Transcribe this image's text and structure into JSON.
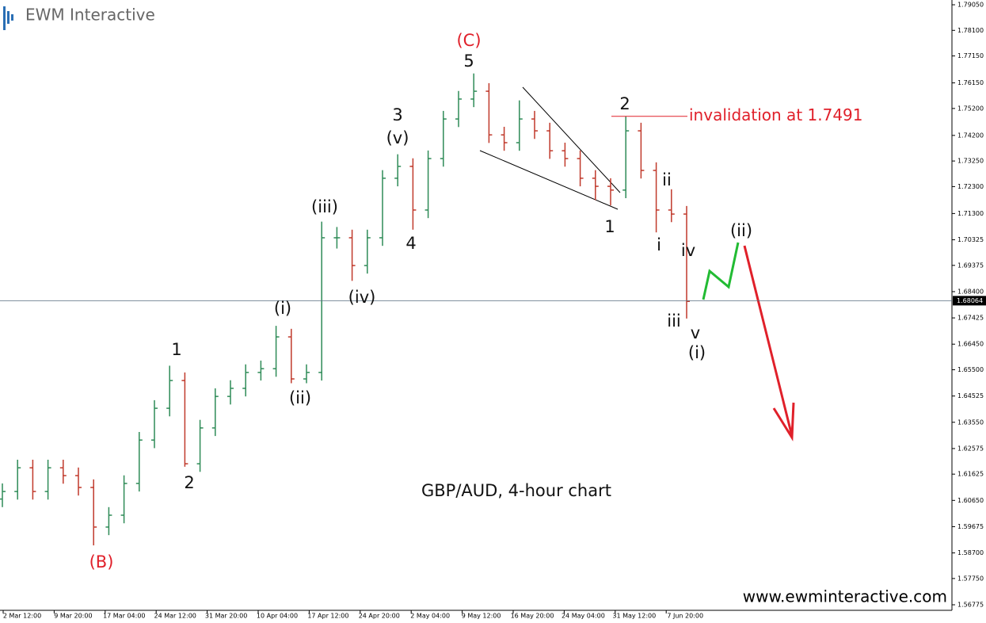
{
  "logo": "EWM Interactive",
  "footer": "www.ewminteractive.com",
  "chart_data": {
    "type": "ohlc",
    "title": "GBP/AUD, 4-hour chart",
    "up_color": "#2e8b57",
    "down_color": "#c0392b",
    "open": [
      1.607,
      1.6098,
      1.6186,
      1.6098,
      1.6186,
      1.6157,
      1.6113,
      1.5966,
      1.601,
      1.6128,
      1.6289,
      1.6407,
      1.651,
      1.6201,
      1.6334,
      1.6451,
      1.6481,
      1.654,
      1.6554,
      1.6672,
      1.6516,
      1.654,
      1.704,
      1.704,
      1.6937,
      1.704,
      1.7261,
      1.7305,
      1.7143,
      1.7334,
      1.7481,
      1.7555,
      1.7584,
      1.7422,
      1.7393,
      1.7481,
      1.7437,
      1.7363,
      1.7334,
      1.7261,
      1.7231,
      1.7217,
      1.7437,
      1.729,
      1.7143,
      1.7128
    ],
    "high": [
      1.6128,
      1.6216,
      1.6216,
      1.6216,
      1.6216,
      1.6187,
      1.6143,
      1.604,
      1.6158,
      1.6319,
      1.6437,
      1.6565,
      1.654,
      1.6364,
      1.6481,
      1.6511,
      1.657,
      1.6584,
      1.6713,
      1.6702,
      1.657,
      1.71,
      1.708,
      1.707,
      1.707,
      1.7291,
      1.735,
      1.7335,
      1.7364,
      1.7511,
      1.7585,
      1.765,
      1.7614,
      1.7452,
      1.755,
      1.7511,
      1.7467,
      1.7393,
      1.7364,
      1.7291,
      1.7261,
      1.7491,
      1.7467,
      1.732,
      1.722,
      1.7158
    ],
    "low": [
      1.604,
      1.6068,
      1.6068,
      1.6068,
      1.6127,
      1.6083,
      1.5898,
      1.5936,
      1.598,
      1.6098,
      1.6259,
      1.6377,
      1.619,
      1.6171,
      1.6304,
      1.6421,
      1.6451,
      1.651,
      1.6524,
      1.65,
      1.65,
      1.651,
      1.7,
      1.688,
      1.6907,
      1.701,
      1.7231,
      1.707,
      1.7113,
      1.7304,
      1.7451,
      1.7525,
      1.7392,
      1.7363,
      1.7363,
      1.7407,
      1.7333,
      1.7304,
      1.7231,
      1.718,
      1.716,
      1.7187,
      1.726,
      1.706,
      1.7098,
      1.674
    ],
    "close": [
      1.6098,
      1.6186,
      1.6098,
      1.6186,
      1.6157,
      1.6113,
      1.5966,
      1.601,
      1.6128,
      1.6289,
      1.6407,
      1.651,
      1.6201,
      1.6334,
      1.6451,
      1.6481,
      1.654,
      1.6554,
      1.6672,
      1.6516,
      1.654,
      1.704,
      1.704,
      1.6937,
      1.704,
      1.7261,
      1.7305,
      1.7143,
      1.7334,
      1.7481,
      1.7555,
      1.7584,
      1.7422,
      1.7393,
      1.7481,
      1.7437,
      1.7363,
      1.7334,
      1.7261,
      1.7231,
      1.7217,
      1.7437,
      1.729,
      1.7143,
      1.7128,
      1.6804
    ],
    "x_labels": [
      "2 Mar 12:00",
      "9 Mar 20:00",
      "17 Mar 04:00",
      "24 Mar 12:00",
      "31 Mar 20:00",
      "10 Apr 04:00",
      "17 Apr 12:00",
      "24 Apr 20:00",
      "2 May 04:00",
      "9 May 12:00",
      "16 May 20:00",
      "24 May 04:00",
      "31 May 12:00",
      "7 Jun 20:00"
    ],
    "ylim": [
      1.56569,
      1.79227
    ],
    "yticks": [
      {
        "value": 1.7905,
        "label": "1.79050"
      },
      {
        "value": 1.781,
        "label": "1.78100"
      },
      {
        "value": 1.7715,
        "label": "1.77150"
      },
      {
        "value": 1.7615,
        "label": "1.76150"
      },
      {
        "value": 1.752,
        "label": "1.75200"
      },
      {
        "value": 1.742,
        "label": "1.74200"
      },
      {
        "value": 1.7325,
        "label": "1.73250"
      },
      {
        "value": 1.723,
        "label": "1.72300"
      },
      {
        "value": 1.713,
        "label": "1.71300"
      },
      {
        "value": 1.70325,
        "label": "1.70325"
      },
      {
        "value": 1.69375,
        "label": "1.69375"
      },
      {
        "value": 1.684,
        "label": "1.68400"
      },
      {
        "value": 1.67425,
        "label": "1.67425"
      },
      {
        "value": 1.6645,
        "label": "1.66450"
      },
      {
        "value": 1.655,
        "label": "1.65500"
      },
      {
        "value": 1.64525,
        "label": "1.64525"
      },
      {
        "value": 1.6355,
        "label": "1.63550"
      },
      {
        "value": 1.62575,
        "label": "1.62575"
      },
      {
        "value": 1.61625,
        "label": "1.61625"
      },
      {
        "value": 1.6065,
        "label": "1.60650"
      },
      {
        "value": 1.59675,
        "label": "1.59675"
      },
      {
        "value": 1.587,
        "label": "1.58700"
      },
      {
        "value": 1.5775,
        "label": "1.57750"
      },
      {
        "value": 1.56775,
        "label": "1.56775"
      }
    ],
    "current_price": {
      "value": 1.68064,
      "label": "1.68064"
    },
    "invalidation": {
      "value": 1.7491,
      "label": "invalidation at 1.7491",
      "color": "#e0202a"
    },
    "annotations": [
      {
        "text": "(C)",
        "color": "#e0202a"
      },
      {
        "text": "5",
        "color": "#111111"
      },
      {
        "text": "3",
        "color": "#111111"
      },
      {
        "text": "(v)",
        "color": "#111111"
      },
      {
        "text": "(iii)",
        "color": "#111111"
      },
      {
        "text": "4",
        "color": "#111111"
      },
      {
        "text": "(iv)",
        "color": "#111111"
      },
      {
        "text": "(i)",
        "color": "#111111"
      },
      {
        "text": "(ii)",
        "color": "#111111"
      },
      {
        "text": "1",
        "color": "#111111"
      },
      {
        "text": "2",
        "color": "#111111"
      },
      {
        "text": "(B)",
        "color": "#e0202a"
      },
      {
        "text": "2",
        "color": "#111111"
      },
      {
        "text": "1",
        "color": "#111111"
      },
      {
        "text": "ii",
        "color": "#111111"
      },
      {
        "text": "i",
        "color": "#111111"
      },
      {
        "text": "iv",
        "color": "#111111"
      },
      {
        "text": "iii",
        "color": "#111111"
      },
      {
        "text": "v",
        "color": "#111111"
      },
      {
        "text": "(i)",
        "color": "#111111"
      },
      {
        "text": "(ii)",
        "color": "#111111"
      }
    ]
  }
}
